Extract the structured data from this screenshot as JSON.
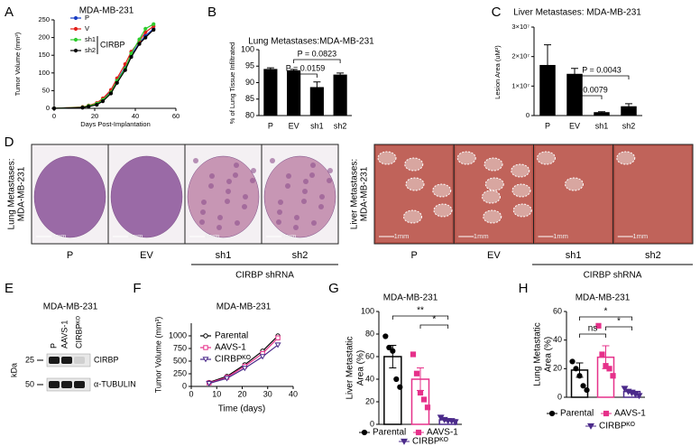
{
  "chart_data": [
    {
      "type": "line",
      "label": "A",
      "title": "MDA-MB-231",
      "x_label": "Days Post-Implantation",
      "y_label": "Tumor Volume (mm³)",
      "x": [
        0,
        14,
        17,
        21,
        24,
        28,
        31,
        35,
        38,
        42,
        45,
        49
      ],
      "series": [
        {
          "name": "P",
          "color": "#1a3fc4",
          "marker": "circle",
          "values": [
            0,
            3,
            6,
            12,
            25,
            48,
            80,
            115,
            150,
            185,
            205,
            225
          ]
        },
        {
          "name": "V",
          "color": "#e3201b",
          "marker": "circle",
          "values": [
            0,
            4,
            8,
            15,
            28,
            52,
            85,
            125,
            160,
            190,
            215,
            232
          ]
        },
        {
          "name": "sh1",
          "color": "#2ecc2e",
          "marker": "circle",
          "values": [
            0,
            3,
            7,
            13,
            24,
            45,
            78,
            112,
            155,
            195,
            225,
            238
          ]
        },
        {
          "name": "sh2",
          "color": "#000000",
          "marker": "circle",
          "values": [
            0,
            2,
            5,
            10,
            20,
            42,
            72,
            108,
            145,
            182,
            200,
            222
          ]
        }
      ],
      "legend_group": "CIRBP",
      "xlim": [
        0,
        60
      ],
      "xticks": [
        0,
        20,
        40,
        60
      ],
      "ylim": [
        0,
        250
      ],
      "yticks": [
        0,
        50,
        100,
        150,
        200,
        250
      ]
    },
    {
      "type": "bar",
      "label": "B",
      "title": "Lung Metastases:MDA-MB-231",
      "y_label": "% of Lung Tissue Infiltrated",
      "categories": [
        "P",
        "EV",
        "sh1",
        "sh2"
      ],
      "values": [
        94,
        93.6,
        88.5,
        92.3
      ],
      "errors": [
        0.5,
        0.4,
        1.7,
        0.6
      ],
      "color": "#000000",
      "ylim": [
        80,
        100
      ],
      "yticks": [
        80,
        85,
        90,
        95,
        100
      ],
      "annotations": [
        "P = 0.0823",
        "P = 0.0159"
      ]
    },
    {
      "type": "bar",
      "label": "C",
      "title": "Liver Metastases: MDA-MB-231",
      "y_label": "Lesion Area (uM²)",
      "categories": [
        "P",
        "EV",
        "sh1",
        "sh2"
      ],
      "values": [
        17000000,
        14000000,
        1000000,
        3000000
      ],
      "errors": [
        7000000,
        2000000,
        300000,
        1000000
      ],
      "color": "#000000",
      "ylim": [
        0,
        30000000
      ],
      "yticks": [
        0,
        {
          "value": 10000000,
          "label": "1×10⁷"
        },
        {
          "value": 20000000,
          "label": "2×10⁷"
        },
        {
          "value": 30000000,
          "label": "3×10⁷"
        }
      ],
      "annotations": [
        "P = 0.0043",
        "P = 0.0079"
      ]
    },
    {
      "type": "line",
      "label": "F",
      "title": "MDA-MB-231",
      "x_label": "Time (days)",
      "y_label": "Tumor Volume (mm³)",
      "x": [
        7,
        14,
        21,
        28,
        34
      ],
      "series": [
        {
          "name": "Parental",
          "color": "#000000",
          "marker": "circle",
          "values": [
            80,
            200,
            430,
            700,
            1000
          ]
        },
        {
          "name": "AAVS-1",
          "color": "#e6318a",
          "marker": "square",
          "values": [
            70,
            180,
            400,
            650,
            960
          ]
        },
        {
          "name": "CIRBPᴷᴼ",
          "color": "#4b2a8a",
          "marker": "triangle-down",
          "values": [
            60,
            160,
            360,
            590,
            820
          ]
        }
      ],
      "xlim": [
        0,
        40
      ],
      "xticks": [
        0,
        10,
        20,
        30,
        40
      ],
      "ylim": [
        0,
        1250
      ],
      "yticks": [
        0,
        250,
        500,
        750,
        1000
      ]
    },
    {
      "type": "bar",
      "label": "G",
      "title": "MDA-MB-231",
      "y_label": [
        "Liver Metastatic",
        "Area (%)"
      ],
      "series": [
        {
          "name": "Parental",
          "color": "#000000",
          "marker": "circle",
          "value": 60,
          "error": 10,
          "points": [
            78,
            68,
            65,
            40,
            33
          ]
        },
        {
          "name": "AAVS-1",
          "color": "#e6318a",
          "marker": "square",
          "value": 40,
          "error": 10,
          "points": [
            62,
            45,
            28,
            22,
            15
          ]
        },
        {
          "name": "CIRBPᴷᴼ",
          "color": "#4b2a8a",
          "marker": "triangle-down",
          "value": 4,
          "error": 1,
          "points": [
            6,
            4,
            3,
            3,
            2
          ]
        }
      ],
      "ylim": [
        0,
        100
      ],
      "yticks": [
        0,
        20,
        40,
        60,
        80,
        100
      ],
      "annotations": [
        "**",
        "*"
      ]
    },
    {
      "type": "bar",
      "label": "H",
      "title": "MDA-MB-231",
      "y_label": [
        "Lung Metastatic",
        "Area (%)"
      ],
      "series": [
        {
          "name": "Parental",
          "color": "#000000",
          "marker": "circle",
          "value": 19,
          "error": 5,
          "points": [
            25,
            20,
            15,
            8,
            5
          ]
        },
        {
          "name": "AAVS-1",
          "color": "#e6318a",
          "marker": "square",
          "value": 28,
          "error": 8,
          "points": [
            50,
            30,
            22,
            20,
            15
          ]
        },
        {
          "name": "CIRBPᴷᴼ",
          "color": "#4b2a8a",
          "marker": "triangle-down",
          "value": 4,
          "error": 1,
          "points": [
            6,
            4,
            3,
            2,
            1
          ]
        }
      ],
      "ylim": [
        0,
        60
      ],
      "yticks": [
        0,
        20,
        40,
        60
      ],
      "annotations": [
        "*",
        "ns",
        "*"
      ]
    }
  ],
  "panel_d": {
    "label": "D",
    "lung": {
      "title_lines": [
        "Lung Metastases:",
        "MDA-MB-231"
      ],
      "samples": [
        "P",
        "EV",
        "sh1",
        "sh2"
      ]
    },
    "liver": {
      "title_lines": [
        "Liver Metastases:",
        "MDA-MB-231"
      ],
      "samples": [
        "P",
        "EV",
        "sh1",
        "sh2"
      ]
    },
    "group": "CIRBP shRNA",
    "scale": "1mm"
  },
  "panel_e": {
    "label": "E",
    "title": "MDA-MB-231",
    "lanes": [
      "P",
      "AAVS-1",
      "CIRBPᴷᴼ"
    ],
    "unit": "kDa",
    "markers": [
      "25",
      "50"
    ],
    "bands": [
      "CIRBP",
      "α-TUBULIN"
    ]
  }
}
